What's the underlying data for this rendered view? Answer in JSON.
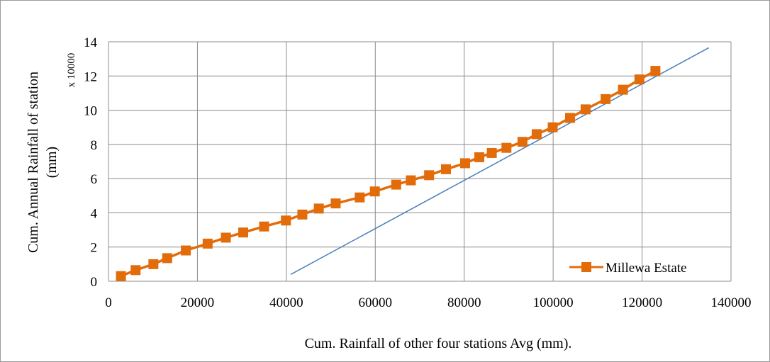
{
  "chart_data": {
    "type": "line",
    "xlabel": "Cum. Rainfall of other four stations Avg (mm).",
    "ylabel_line1": "Cum. Annual Rainfall of station",
    "ylabel_line2": "(mm)",
    "y_scale_note": "x 10000",
    "xlim": [
      0,
      140000
    ],
    "ylim": [
      0,
      14
    ],
    "x_ticks": [
      0,
      20000,
      40000,
      60000,
      80000,
      100000,
      120000,
      140000
    ],
    "x_tick_labels": [
      "0",
      "20000",
      "40000",
      "60000",
      "80000",
      "100000",
      "120000",
      "140000"
    ],
    "y_ticks": [
      0,
      2,
      4,
      6,
      8,
      10,
      12,
      14
    ],
    "y_tick_labels": [
      "0",
      "2",
      "4",
      "6",
      "8",
      "10",
      "12",
      "14"
    ],
    "grid": true,
    "legend_position": "bottom-right",
    "series": [
      {
        "name": "Millewa Estate",
        "color": "#e36c0a",
        "marker": "square",
        "x": [
          2800,
          6100,
          10100,
          13200,
          17400,
          22300,
          26400,
          30300,
          35000,
          39900,
          43600,
          47300,
          51100,
          56500,
          59900,
          64700,
          68000,
          72100,
          75900,
          80200,
          83400,
          86200,
          89500,
          93100,
          96300,
          99900,
          103800,
          107300,
          111800,
          115700,
          119400,
          123000
        ],
        "y": [
          0.3,
          0.65,
          1.0,
          1.35,
          1.8,
          2.2,
          2.55,
          2.85,
          3.2,
          3.55,
          3.9,
          4.25,
          4.55,
          4.9,
          5.25,
          5.65,
          5.9,
          6.2,
          6.55,
          6.9,
          7.25,
          7.5,
          7.8,
          8.15,
          8.6,
          9.0,
          9.55,
          10.05,
          10.65,
          11.2,
          11.8,
          12.3
        ]
      }
    ],
    "reference_line": {
      "color": "#4a7ebb",
      "x": [
        41000,
        135000
      ],
      "y": [
        0.4,
        13.65
      ]
    }
  }
}
